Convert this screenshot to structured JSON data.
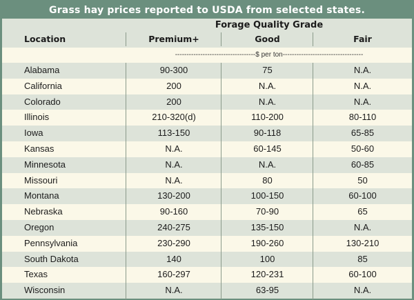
{
  "chart_data": {
    "type": "table",
    "title": "Grass hay prices reported to USDA from selected states.",
    "column_group": "Forage Quality Grade",
    "columns": [
      "Location",
      "Premium+",
      "Good",
      "Fair"
    ],
    "unit_label": "-----------------------------------$ per ton-----------------------------------",
    "rows": [
      {
        "location": "Alabama",
        "premium": "90-300",
        "good": "75",
        "fair": "N.A."
      },
      {
        "location": "California",
        "premium": "200",
        "good": "N.A.",
        "fair": "N.A."
      },
      {
        "location": "Colorado",
        "premium": "200",
        "good": "N.A.",
        "fair": "N.A."
      },
      {
        "location": "Illinois",
        "premium": "210-320(d)",
        "good": "110-200",
        "fair": "80-110"
      },
      {
        "location": "Iowa",
        "premium": "113-150",
        "good": "90-118",
        "fair": "65-85"
      },
      {
        "location": "Kansas",
        "premium": "N.A.",
        "good": "60-145",
        "fair": "50-60"
      },
      {
        "location": "Minnesota",
        "premium": "N.A.",
        "good": "N.A.",
        "fair": "60-85"
      },
      {
        "location": "Missouri",
        "premium": "N.A.",
        "good": "80",
        "fair": "50"
      },
      {
        "location": "Montana",
        "premium": "130-200",
        "good": "100-150",
        "fair": "60-100"
      },
      {
        "location": "Nebraska",
        "premium": "90-160",
        "good": "70-90",
        "fair": "65"
      },
      {
        "location": "Oregon",
        "premium": "240-275",
        "good": "135-150",
        "fair": "N.A."
      },
      {
        "location": "Pennsylvania",
        "premium": "230-290",
        "good": "190-260",
        "fair": "130-210"
      },
      {
        "location": "South Dakota",
        "premium": "140",
        "good": "100",
        "fair": "85"
      },
      {
        "location": "Texas",
        "premium": "160-297",
        "good": "120-231",
        "fair": "60-100"
      },
      {
        "location": "Wisconsin",
        "premium": "N.A.",
        "good": "63-95",
        "fair": "N.A."
      }
    ],
    "colors": {
      "header": "#6b8f7e",
      "band": "#dde3d9",
      "paper": "#fbf8e8"
    }
  }
}
